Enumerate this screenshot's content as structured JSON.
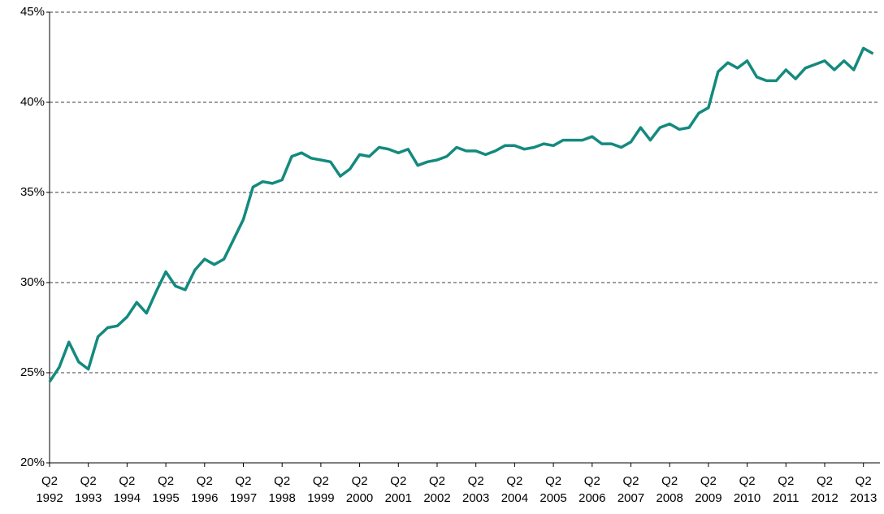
{
  "chart_data": {
    "type": "line",
    "categories": [
      "Q2\n1992",
      null,
      null,
      null,
      "Q2\n1993",
      null,
      null,
      null,
      "Q2\n1994",
      null,
      null,
      null,
      "Q2\n1995",
      null,
      null,
      null,
      "Q2\n1996",
      null,
      null,
      null,
      "Q2\n1997",
      null,
      null,
      null,
      "Q2\n1998",
      null,
      null,
      null,
      "Q2\n1999",
      null,
      null,
      null,
      "Q2\n2000",
      null,
      null,
      null,
      "Q2\n2001",
      null,
      null,
      null,
      "Q2\n2002",
      null,
      null,
      null,
      "Q2\n2003",
      null,
      null,
      null,
      "Q2\n2004",
      null,
      null,
      null,
      "Q2\n2005",
      null,
      null,
      null,
      "Q2\n2006",
      null,
      null,
      null,
      "Q2\n2007",
      null,
      null,
      null,
      "Q2\n2008",
      null,
      null,
      null,
      "Q2\n2009",
      null,
      null,
      null,
      "Q2\n2010",
      null,
      null,
      null,
      "Q2\n2011",
      null,
      null,
      null,
      "Q2\n2012",
      null,
      null,
      null,
      "Q2\n2013",
      null
    ],
    "values": [
      24.5,
      25.3,
      26.7,
      25.6,
      25.2,
      27.0,
      27.5,
      27.6,
      28.1,
      28.9,
      28.3,
      29.5,
      30.6,
      29.8,
      29.6,
      30.7,
      31.3,
      31.0,
      31.3,
      32.4,
      33.5,
      35.3,
      35.6,
      35.5,
      35.7,
      37.0,
      37.2,
      36.9,
      36.8,
      36.7,
      35.9,
      36.3,
      37.1,
      37.0,
      37.5,
      37.4,
      37.2,
      37.4,
      36.5,
      36.7,
      36.8,
      37.0,
      37.5,
      37.3,
      37.3,
      37.1,
      37.3,
      37.6,
      37.6,
      37.4,
      37.5,
      37.7,
      37.6,
      37.9,
      37.9,
      37.9,
      38.1,
      37.7,
      37.7,
      37.5,
      37.8,
      38.6,
      37.9,
      38.6,
      38.8,
      38.5,
      38.6,
      39.4,
      39.7,
      41.7,
      42.2,
      41.9,
      42.3,
      41.4,
      41.2,
      41.2,
      41.8,
      41.3,
      41.9,
      42.1,
      42.3,
      41.8,
      42.3,
      41.8,
      43.0,
      42.7
    ],
    "color": "#148a7e",
    "ylim": [
      20,
      45
    ],
    "yticks": [
      {
        "value": 20,
        "label": "20%"
      },
      {
        "value": 25,
        "label": "25%"
      },
      {
        "value": 30,
        "label": "30%"
      },
      {
        "value": 35,
        "label": "35%"
      },
      {
        "value": 40,
        "label": "40%"
      },
      {
        "value": 45,
        "label": "45%"
      }
    ],
    "grid": true
  }
}
